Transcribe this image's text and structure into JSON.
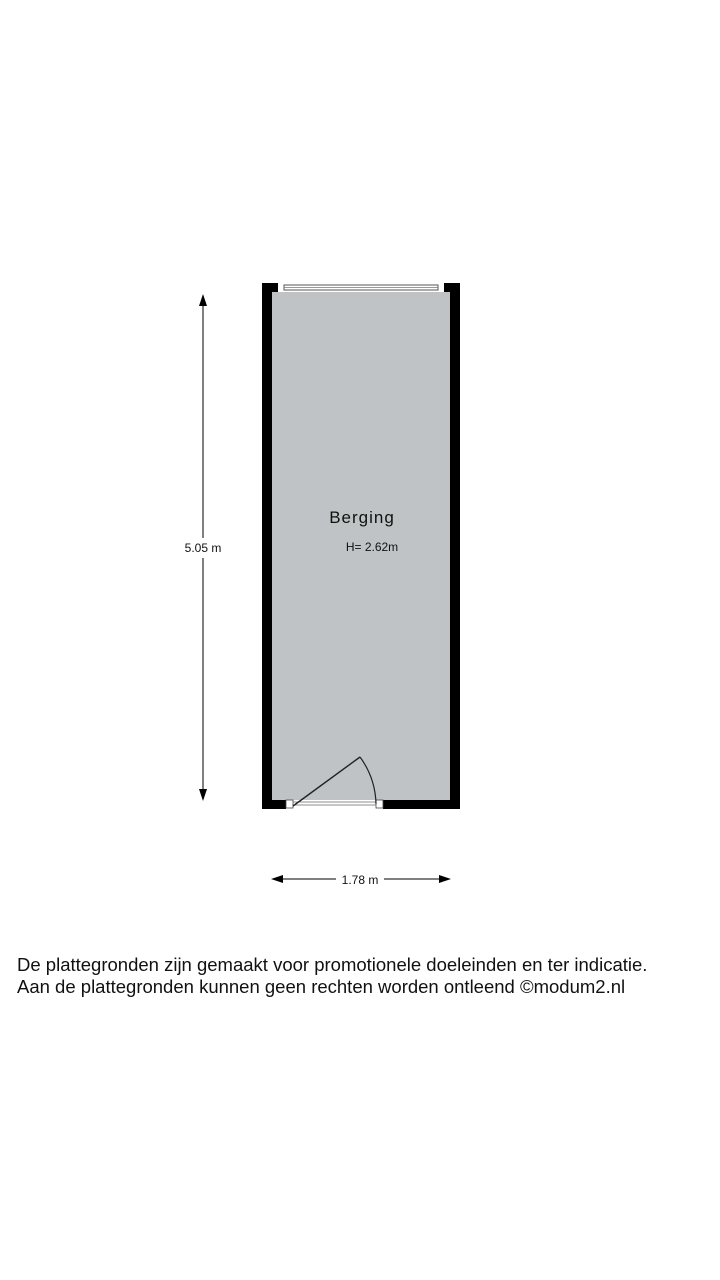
{
  "room": {
    "name": "Berging",
    "height_label": "H= 2.62m"
  },
  "dimensions": {
    "length": "5.05 m",
    "width": "1.78 m"
  },
  "disclaimer": {
    "line1": "De plattegronden zijn gemaakt voor promotionele doeleinden en ter indicatie.",
    "line2": "Aan de plattegronden kunnen geen rechten worden ontleend ©modum2.nl"
  },
  "colors": {
    "floor": "#bfc3c5",
    "wall": "#000000"
  }
}
